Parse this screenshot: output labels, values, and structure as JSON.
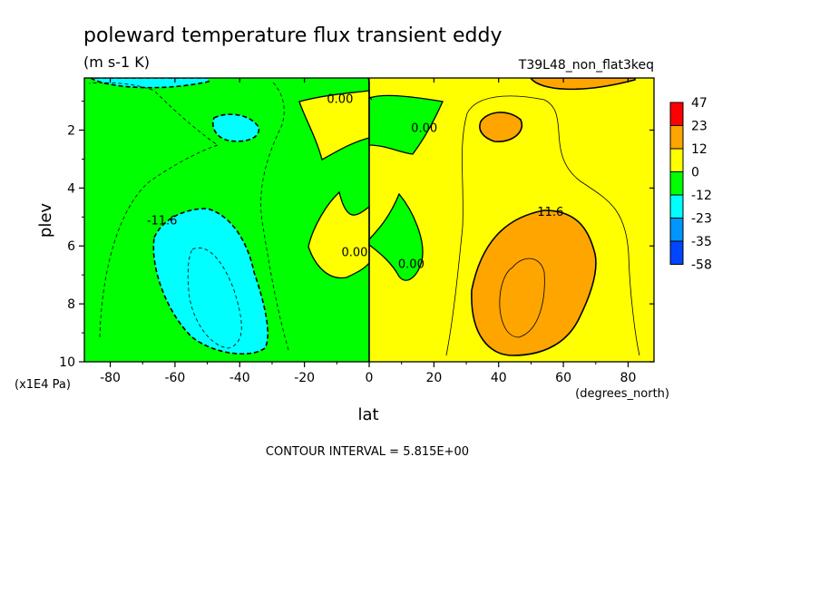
{
  "chart_data": {
    "type": "heatmap",
    "title": "poleward temperature flux transient eddy",
    "units": "(m s-1 K)",
    "dataset": "T39L48_non_flat3keq",
    "xlabel": "lat",
    "ylabel": "plev",
    "x_units": "(degrees_north)",
    "y_units": "(x1E4 Pa)",
    "xlim": [
      -88,
      88
    ],
    "ylim": [
      10,
      0.2
    ],
    "x_ticks": [
      {
        "value": -80,
        "label": "-80"
      },
      {
        "value": -60,
        "label": "-60"
      },
      {
        "value": -40,
        "label": "-40"
      },
      {
        "value": -20,
        "label": "-20"
      },
      {
        "value": 0,
        "label": "0"
      },
      {
        "value": 20,
        "label": "20"
      },
      {
        "value": 40,
        "label": "40"
      },
      {
        "value": 60,
        "label": "60"
      },
      {
        "value": 80,
        "label": "80"
      }
    ],
    "y_ticks": [
      {
        "value": 2,
        "label": "2"
      },
      {
        "value": 4,
        "label": "4"
      },
      {
        "value": 6,
        "label": "6"
      },
      {
        "value": 8,
        "label": "8"
      },
      {
        "value": 10,
        "label": "10"
      }
    ],
    "contour_interval": "CONTOUR INTERVAL = 5.815E+00",
    "contour_labels": [
      {
        "lat": -9,
        "plev": 0.9,
        "text": "0.00"
      },
      {
        "lat": 17,
        "plev": 1.9,
        "text": "0.00"
      },
      {
        "lat": -4.5,
        "plev": 6.2,
        "text": "0.00"
      },
      {
        "lat": 13,
        "plev": 6.6,
        "text": "0.00"
      },
      {
        "lat": -64,
        "plev": 5.1,
        "text": "-11.6"
      },
      {
        "lat": 56,
        "plev": 4.8,
        "text": "11.6"
      }
    ],
    "colorbar": {
      "labels": [
        "47",
        "23",
        "12",
        "0",
        "-12",
        "-23",
        "-35",
        "-58"
      ],
      "colors": [
        "#ff0000",
        "#ffa500",
        "#ffff00",
        "#00ff00",
        "#00ffff",
        "#0096ff",
        "#0046ff"
      ]
    }
  }
}
